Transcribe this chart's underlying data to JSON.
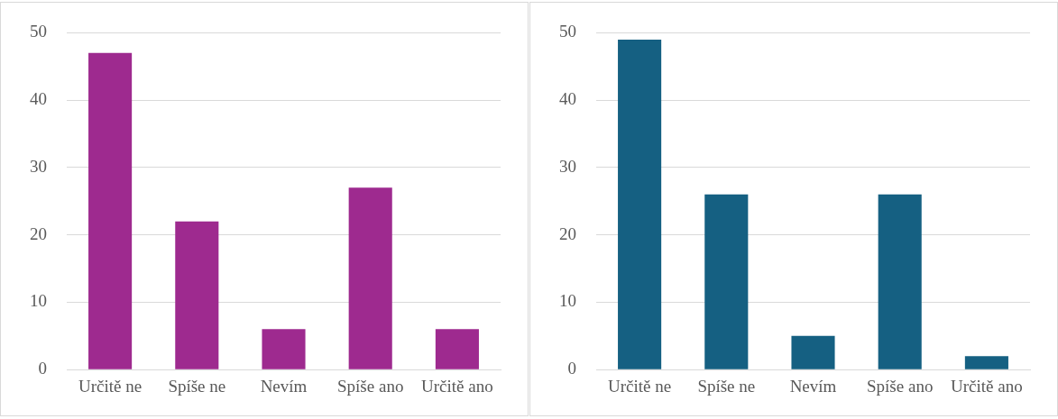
{
  "chart_data": [
    {
      "type": "bar",
      "categories": [
        "Určitě ne",
        "Spíše ne",
        "Nevím",
        "Spíše ano",
        "Určitě ano"
      ],
      "values": [
        47,
        22,
        6,
        27,
        6
      ],
      "color": "#9e2a8f",
      "ylim": [
        0,
        50
      ],
      "yticks": [
        0,
        10,
        20,
        30,
        40,
        50
      ],
      "grid": "y",
      "legend": false
    },
    {
      "type": "bar",
      "categories": [
        "Určitě ne",
        "Spíše ne",
        "Nevím",
        "Spíše ano",
        "Určitě ano"
      ],
      "values": [
        49,
        26,
        5,
        26,
        2
      ],
      "color": "#156082",
      "ylim": [
        0,
        50
      ],
      "yticks": [
        0,
        10,
        20,
        30,
        40,
        50
      ],
      "grid": "y",
      "legend": false
    }
  ]
}
